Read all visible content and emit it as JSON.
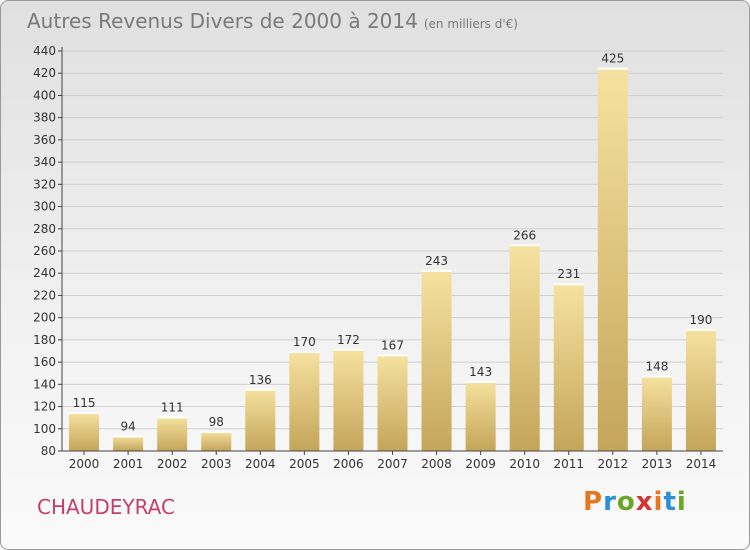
{
  "header": {
    "title": "Autres Revenus Divers de 2000 à 2014",
    "unit": "(en milliers d'€)"
  },
  "footer": {
    "commune": "CHAUDEYRAC",
    "logo_text": "Proxiti",
    "logo_colors": [
      "#e8761e",
      "#2a8fd6",
      "#6aa628",
      "#d63333",
      "#e8761e",
      "#2a8fd6",
      "#6aa628"
    ]
  },
  "colors": {
    "bar_light": "#f6e2a0",
    "bar_dark": "#c4a55a",
    "grid": "#d0d0d0",
    "axis": "#444444",
    "text": "#333333"
  },
  "chart_data": {
    "type": "bar",
    "title": "Autres Revenus Divers de 2000 à 2014",
    "subtitle": "(en milliers d'€)",
    "xlabel": "",
    "ylabel": "",
    "categories": [
      "2000",
      "2001",
      "2002",
      "2003",
      "2004",
      "2005",
      "2006",
      "2007",
      "2008",
      "2009",
      "2010",
      "2011",
      "2012",
      "2013",
      "2014"
    ],
    "values": [
      115,
      94,
      111,
      98,
      136,
      170,
      172,
      167,
      243,
      143,
      266,
      231,
      425,
      148,
      190
    ],
    "ylim": [
      80,
      440
    ],
    "ytick_step": 20,
    "grid": true,
    "legend": "none"
  }
}
